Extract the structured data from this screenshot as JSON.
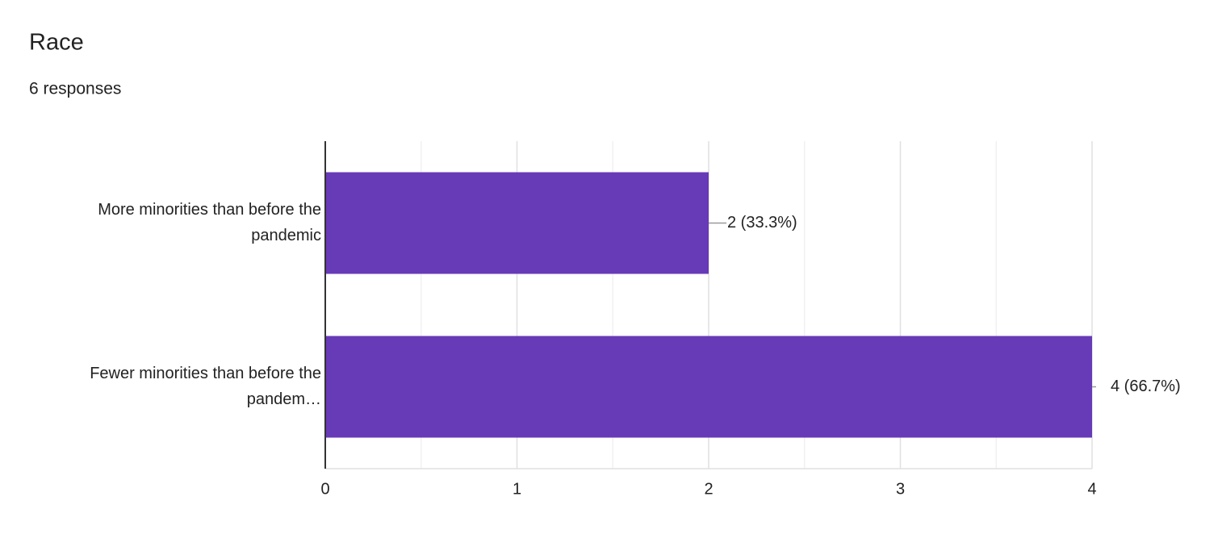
{
  "chart_data": {
    "type": "bar",
    "orientation": "horizontal",
    "title": "Race",
    "subtitle": "6 responses",
    "categories": [
      [
        "More minorities than before the",
        "pandemic"
      ],
      [
        "Fewer minorities than before the",
        "pandem…"
      ]
    ],
    "values": [
      2,
      4
    ],
    "value_labels": [
      "2 (33.3%)",
      "4 (66.7%)"
    ],
    "color": "#673ab7",
    "xlim": [
      0,
      4
    ],
    "xticks": [
      0,
      1,
      2,
      3,
      4
    ],
    "minor_xticks": [
      0.5,
      1.5,
      2.5,
      3.5
    ],
    "grid": true
  }
}
